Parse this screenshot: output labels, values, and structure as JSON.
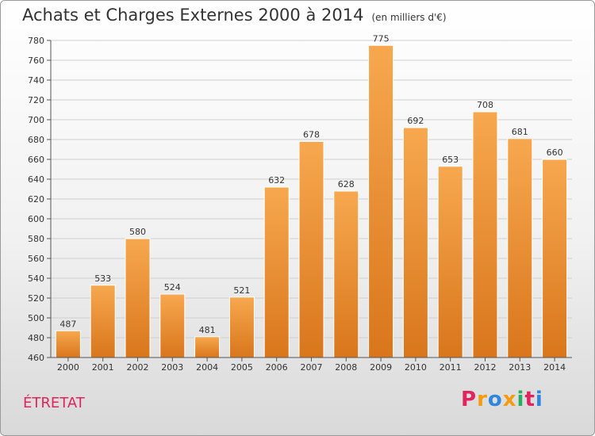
{
  "title": "Achats et Charges Externes 2000 à 2014",
  "unit": "(en milliers d'€)",
  "place": "ÉTRETAT",
  "logo": [
    "P",
    "r",
    "o",
    "x",
    "i",
    "t",
    "i"
  ],
  "colors": {
    "bar_light": "#f7a84f",
    "bar_dark": "#d9761c",
    "grid": "#cfcfcf",
    "place": "#e0245e",
    "logo": [
      "#e0245e",
      "#f39c12",
      "#2e86de",
      "#f39c12",
      "#27ae60",
      "#e0245e",
      "#2e86de"
    ]
  },
  "chart_data": {
    "type": "bar",
    "categories": [
      "2000",
      "2001",
      "2002",
      "2003",
      "2004",
      "2005",
      "2006",
      "2007",
      "2008",
      "2009",
      "2010",
      "2011",
      "2012",
      "2013",
      "2014"
    ],
    "values": [
      487,
      533,
      580,
      524,
      481,
      521,
      632,
      678,
      628,
      775,
      692,
      653,
      708,
      681,
      660
    ],
    "ylim": [
      460,
      780
    ],
    "yticks": [
      460,
      480,
      500,
      520,
      540,
      560,
      580,
      600,
      620,
      640,
      660,
      680,
      700,
      720,
      740,
      760,
      780
    ],
    "grid": true
  }
}
